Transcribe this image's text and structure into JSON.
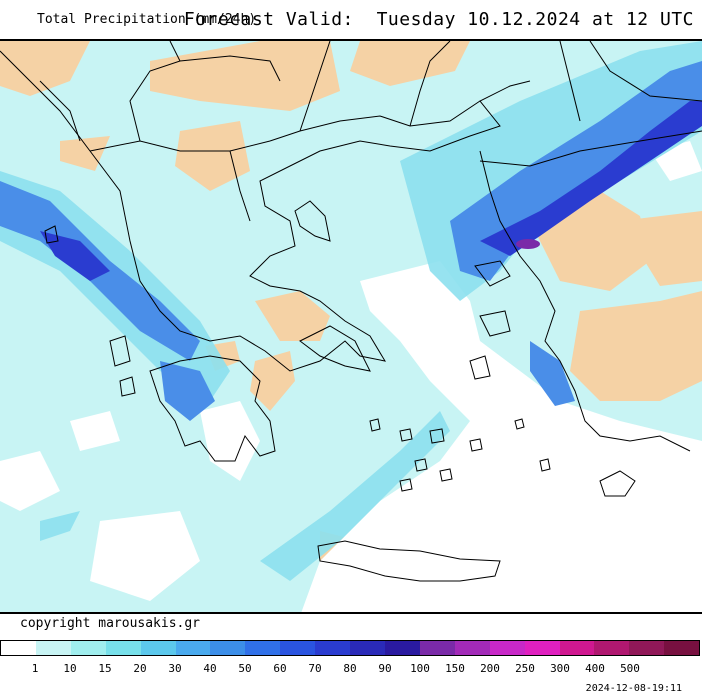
{
  "header": {
    "title": "Total Precipitation (mm/24h)",
    "forecast_label": "Forecast Valid:",
    "forecast_time": "Tuesday 10.12.2024 at 12 UTC"
  },
  "footer": {
    "copyright": "copyright marousakis.gr",
    "timestamp": "2024-12-08-19:11"
  },
  "legend": {
    "colors": [
      "#ffffff",
      "#c8f4f4",
      "#a0eeee",
      "#78e0ea",
      "#5cc8ec",
      "#4aaaee",
      "#3c8ee8",
      "#3070e8",
      "#2a54e0",
      "#2a3cd0",
      "#2a2ab8",
      "#2a1aa0",
      "#7a2aa8",
      "#a22ab8",
      "#c828c8",
      "#e020c0",
      "#d01890",
      "#b01870",
      "#901858",
      "#781040"
    ],
    "labels": [
      "1",
      "10",
      "15",
      "20",
      "30",
      "40",
      "50",
      "60",
      "70",
      "80",
      "90",
      "100",
      "150",
      "200",
      "250",
      "300",
      "400",
      "500"
    ]
  },
  "map": {
    "colors": {
      "dry_land": "#f5d2a5",
      "light_precip": "#c8f4f4",
      "mid_precip": "#8ce0ee",
      "heavy_precip": "#4a8ee8",
      "very_heavy": "#2a3cd0",
      "extreme": "#7a2aa8",
      "border": "#000000"
    }
  }
}
